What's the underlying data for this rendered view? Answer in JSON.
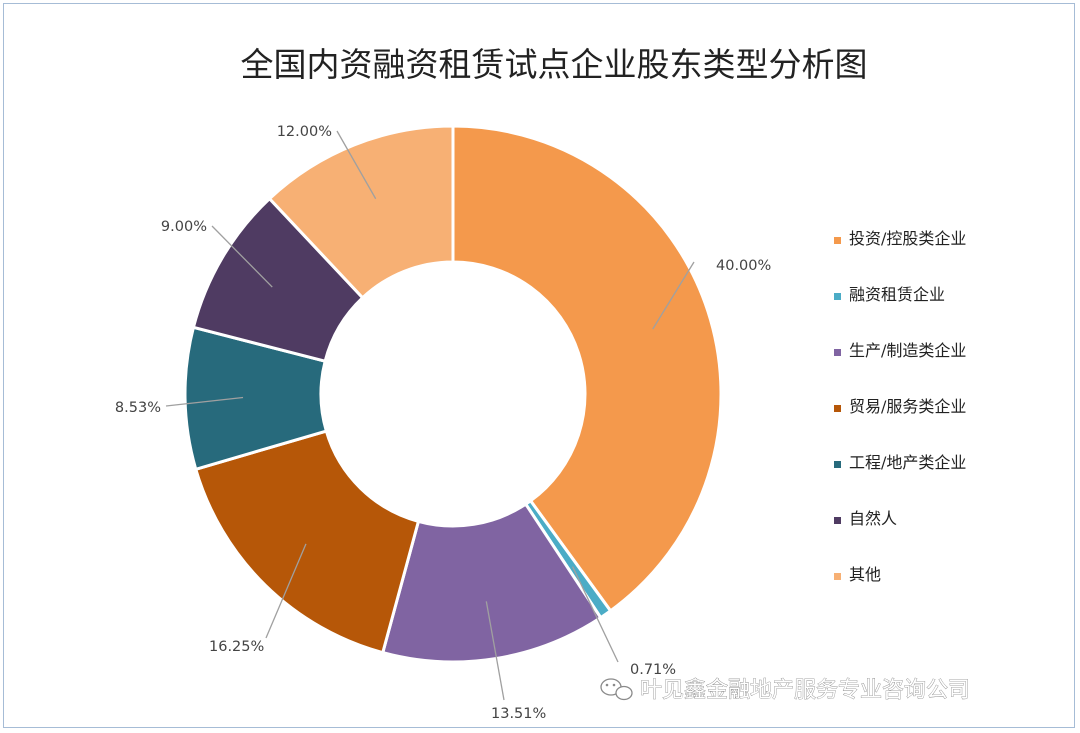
{
  "chart_data": {
    "type": "pie",
    "title": "全国内资融资租赁试点企业股东类型分析图",
    "donut": true,
    "legend_position": "right",
    "slices": [
      {
        "label": "投资/控股类企业",
        "value": 40.0,
        "display": "40.00%",
        "color": "#F4994C"
      },
      {
        "label": "融资租赁企业",
        "value": 0.71,
        "display": "0.71%",
        "color": "#4BACC6"
      },
      {
        "label": "生产/制造类企业",
        "value": 13.51,
        "display": "13.51%",
        "color": "#8064A2"
      },
      {
        "label": "贸易/服务类企业",
        "value": 16.25,
        "display": "16.25%",
        "color": "#B65708"
      },
      {
        "label": "工程/地产类企业",
        "value": 8.53,
        "display": "8.53%",
        "color": "#276A7C"
      },
      {
        "label": "自然人",
        "value": 9.0,
        "display": "9.00%",
        "color": "#4F3B62"
      },
      {
        "label": "其他",
        "value": 12.0,
        "display": "12.00%",
        "color": "#F7B074"
      }
    ]
  },
  "watermark": {
    "icon": "wechat-icon",
    "text": "叶见鑫金融地产服务专业咨询公司"
  }
}
